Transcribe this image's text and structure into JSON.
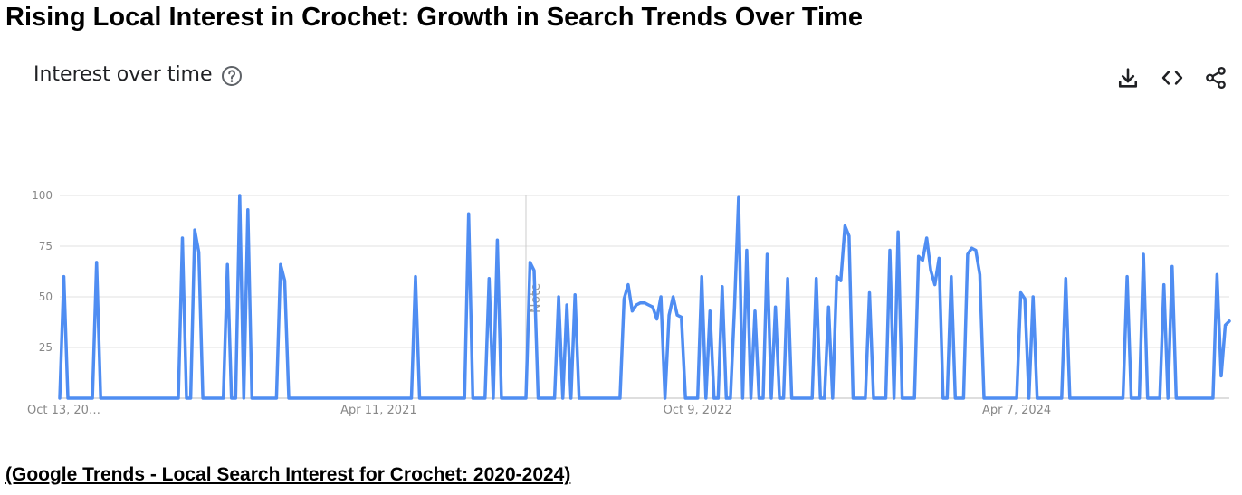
{
  "title": "Rising Local Interest in Crochet: Growth in Search Trends Over Time",
  "section_title": "Interest over time",
  "icons": {
    "help": "help-circle-icon",
    "download": "download-icon",
    "embed": "code-brackets-icon",
    "share": "share-icon"
  },
  "caption": "(Google Trends - Local Search Interest for Crochet: 2020-2024)",
  "colors": {
    "line": "#4f8df2",
    "grid": "#e0e0e0",
    "axis_text": "#888888",
    "note_line": "#cccccc"
  },
  "chart_data": {
    "type": "line",
    "title": "",
    "xlabel": "",
    "ylabel": "",
    "ylim": [
      0,
      100
    ],
    "yticks": [
      25,
      50,
      75,
      100
    ],
    "grid": true,
    "x_tick_labels": [
      "Oct 13, 20…",
      "Apr 11, 2021",
      "Oct 9, 2022",
      "Apr 7, 2024"
    ],
    "x_tick_index": [
      0,
      78,
      156,
      234
    ],
    "note_label": "Note",
    "note_index": 114,
    "series": [
      {
        "values": [
          0,
          60,
          0,
          0,
          0,
          0,
          0,
          0,
          0,
          67,
          0,
          0,
          0,
          0,
          0,
          0,
          0,
          0,
          0,
          0,
          0,
          0,
          0,
          0,
          0,
          0,
          0,
          0,
          0,
          0,
          79,
          0,
          0,
          83,
          72,
          0,
          0,
          0,
          0,
          0,
          0,
          66,
          0,
          0,
          100,
          0,
          93,
          0,
          0,
          0,
          0,
          0,
          0,
          0,
          66,
          58,
          0,
          0,
          0,
          0,
          0,
          0,
          0,
          0,
          0,
          0,
          0,
          0,
          0,
          0,
          0,
          0,
          0,
          0,
          0,
          0,
          0,
          0,
          0,
          0,
          0,
          0,
          0,
          0,
          0,
          0,
          0,
          60,
          0,
          0,
          0,
          0,
          0,
          0,
          0,
          0,
          0,
          0,
          0,
          0,
          91,
          0,
          0,
          0,
          0,
          59,
          0,
          78,
          0,
          0,
          0,
          0,
          0,
          0,
          0,
          67,
          63,
          0,
          0,
          0,
          0,
          0,
          50,
          0,
          46,
          0,
          51,
          0,
          0,
          0,
          0,
          0,
          0,
          0,
          0,
          0,
          0,
          0,
          49,
          56,
          43,
          46,
          47,
          47,
          46,
          45,
          39,
          50,
          0,
          41,
          50,
          41,
          40,
          0,
          0,
          0,
          0,
          60,
          0,
          43,
          0,
          0,
          55,
          0,
          0,
          45,
          99,
          0,
          73,
          0,
          43,
          0,
          0,
          71,
          0,
          45,
          0,
          0,
          59,
          0,
          0,
          0,
          0,
          0,
          0,
          59,
          0,
          0,
          45,
          0,
          60,
          58,
          85,
          80,
          0,
          0,
          0,
          0,
          52,
          0,
          0,
          0,
          0,
          73,
          0,
          82,
          0,
          0,
          0,
          0,
          70,
          68,
          79,
          63,
          56,
          69,
          0,
          0,
          60,
          0,
          0,
          0,
          71,
          74,
          73,
          61,
          0,
          0,
          0,
          0,
          0,
          0,
          0,
          0,
          0,
          52,
          49,
          0,
          50,
          0,
          0,
          0,
          0,
          0,
          0,
          0,
          59,
          0,
          0,
          0,
          0,
          0,
          0,
          0,
          0,
          0,
          0,
          0,
          0,
          0,
          0,
          60,
          0,
          0,
          0,
          71,
          0,
          0,
          0,
          0,
          56,
          0,
          65,
          0,
          0,
          0,
          0,
          0,
          0,
          0,
          0,
          0,
          0,
          61,
          11,
          36,
          38
        ]
      }
    ]
  }
}
